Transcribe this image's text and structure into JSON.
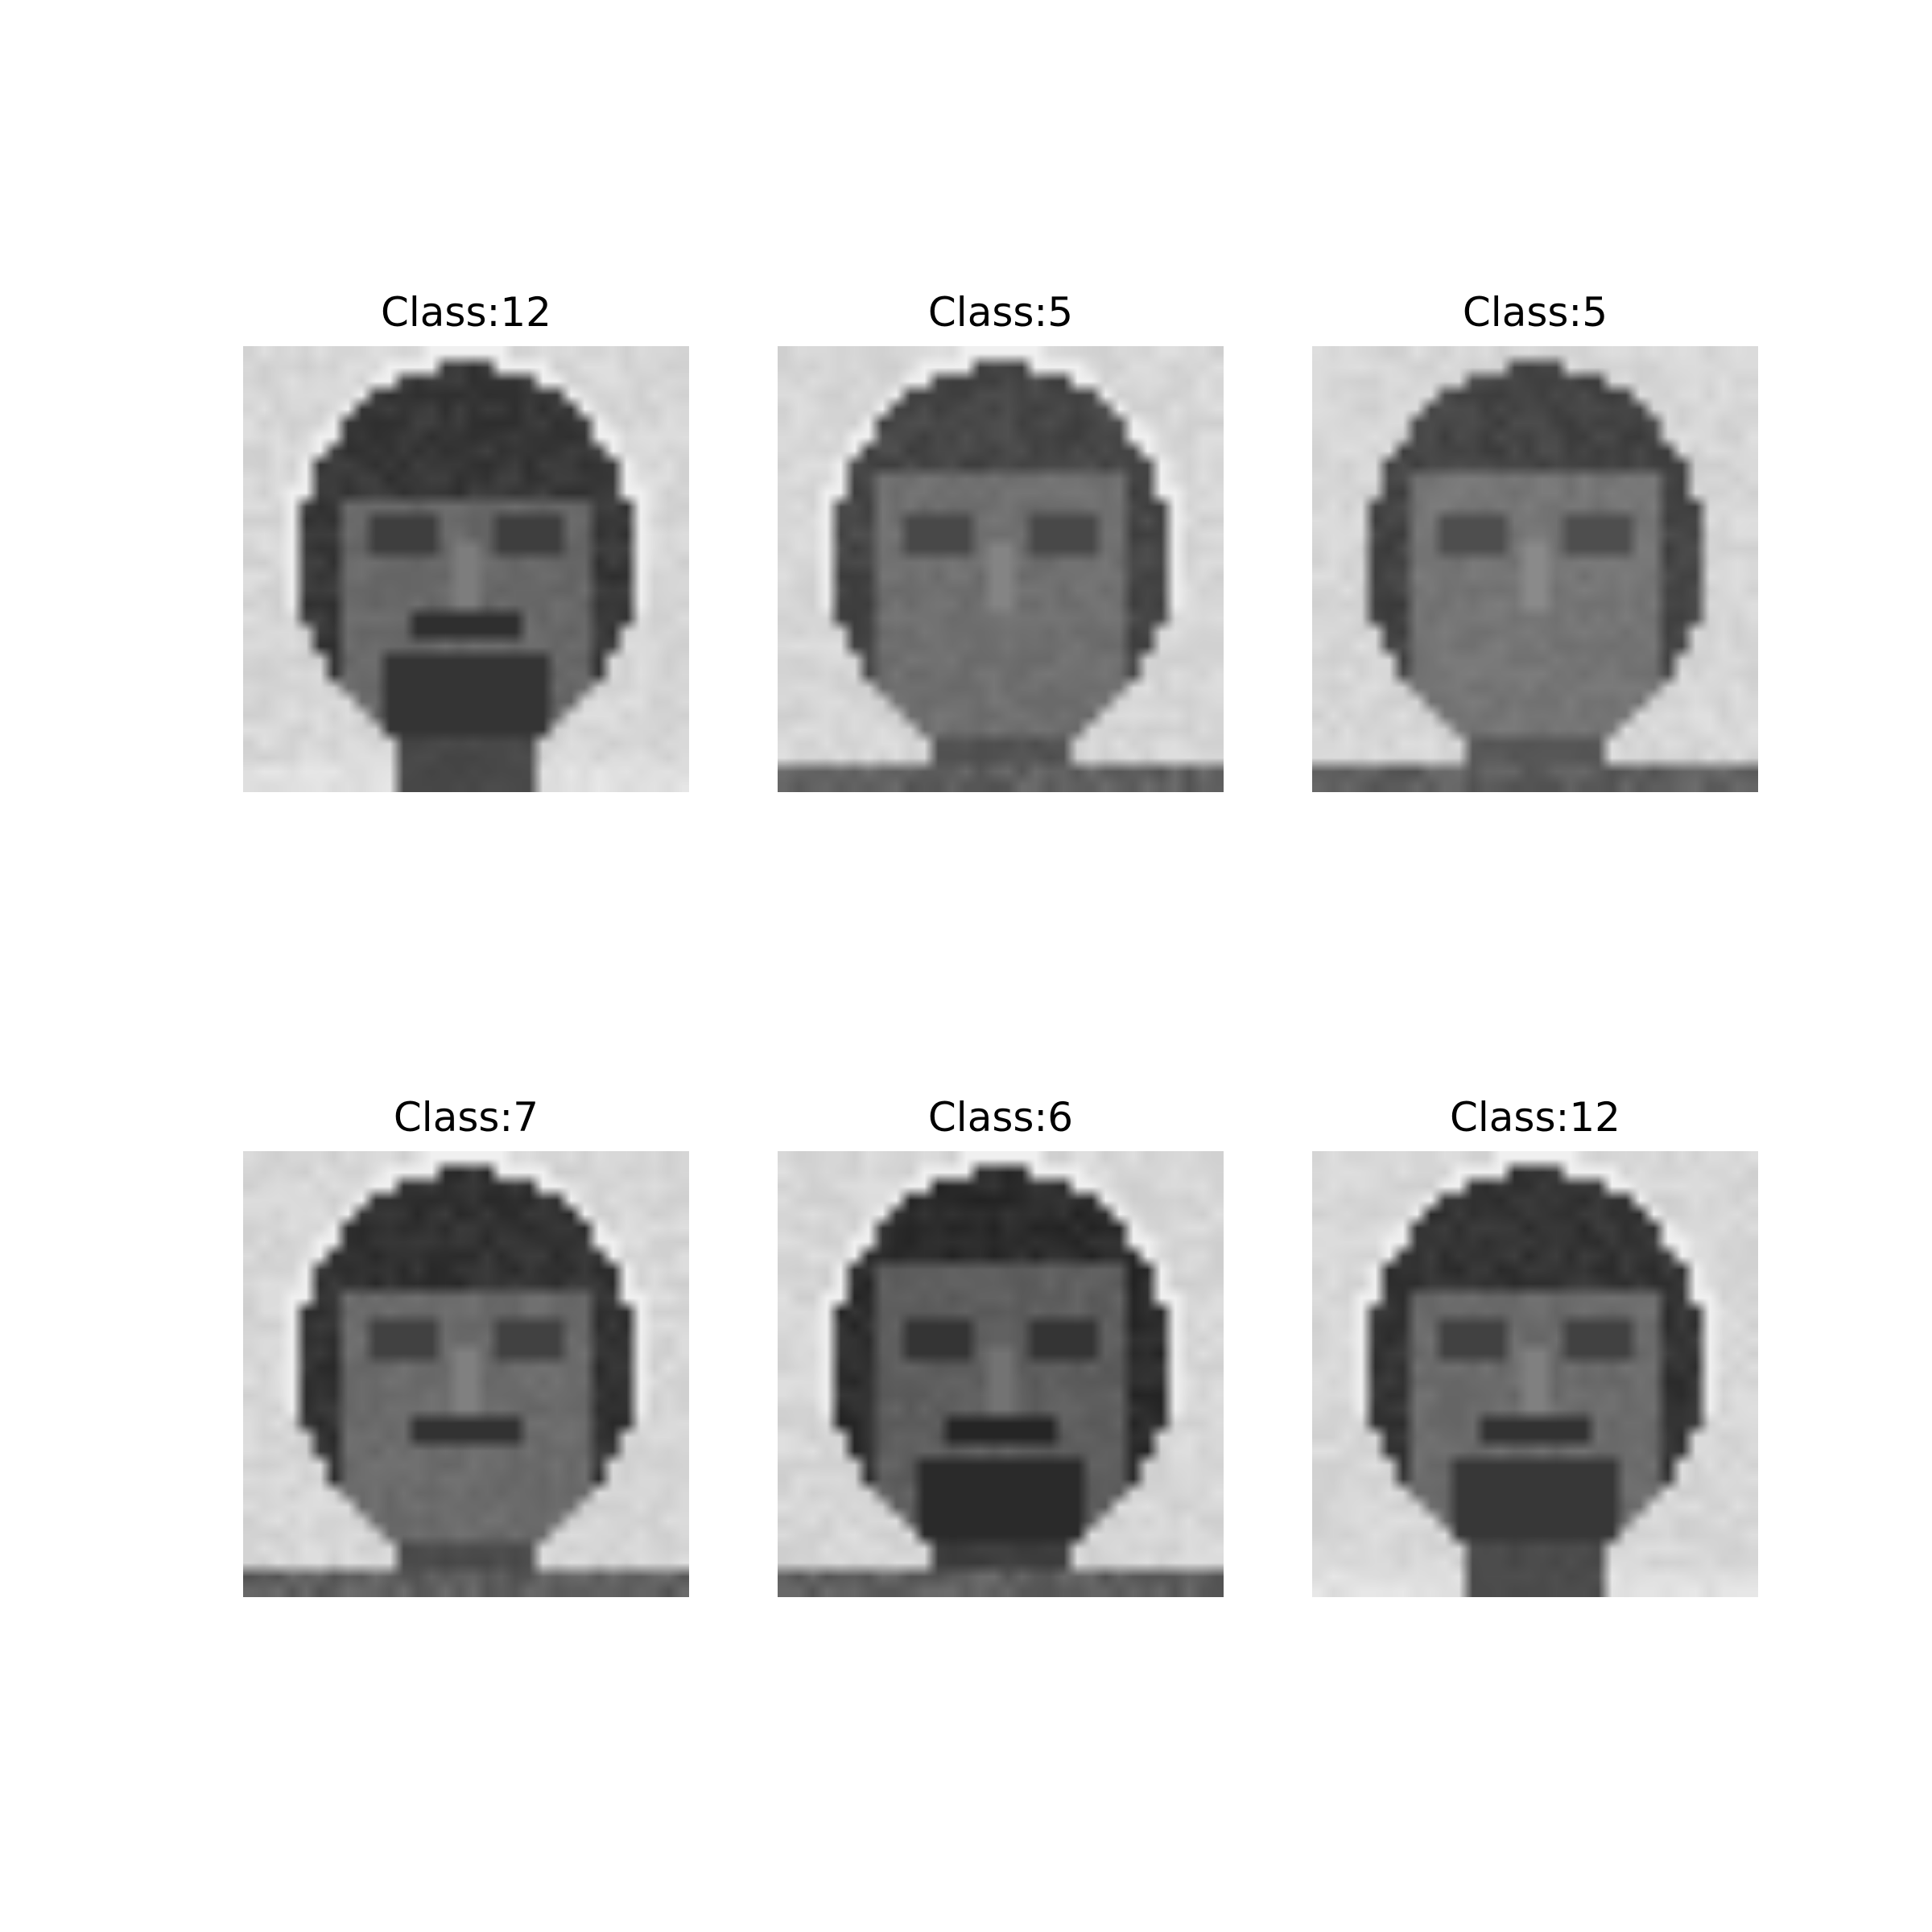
{
  "panels": [
    {
      "title": "Class:12",
      "variant": {
        "hairTop": 0.12,
        "hairDark": 46,
        "faceTone": 92,
        "skinTone": 105,
        "beard": true,
        "mustache": true,
        "halo": true,
        "shoulders": false
      }
    },
    {
      "title": "Class:5",
      "variant": {
        "hairTop": 0.06,
        "hairDark": 60,
        "faceTone": 102,
        "skinTone": 112,
        "beard": false,
        "mustache": false,
        "halo": true,
        "shoulders": true
      }
    },
    {
      "title": "Class:5",
      "variant": {
        "hairTop": 0.06,
        "hairDark": 58,
        "faceTone": 108,
        "skinTone": 118,
        "beard": false,
        "mustache": false,
        "halo": false,
        "shoulders": true
      }
    },
    {
      "title": "Class:7",
      "variant": {
        "hairTop": 0.1,
        "hairDark": 40,
        "faceTone": 95,
        "skinTone": 108,
        "beard": false,
        "mustache": true,
        "halo": true,
        "shoulders": true
      }
    },
    {
      "title": "Class:6",
      "variant": {
        "hairTop": 0.04,
        "hairDark": 34,
        "faceTone": 82,
        "skinTone": 95,
        "beard": true,
        "mustache": true,
        "halo": true,
        "shoulders": true
      }
    },
    {
      "title": "Class:12",
      "variant": {
        "hairTop": 0.1,
        "hairDark": 42,
        "faceTone": 95,
        "skinTone": 108,
        "beard": true,
        "mustache": true,
        "halo": true,
        "shoulders": false
      }
    }
  ]
}
